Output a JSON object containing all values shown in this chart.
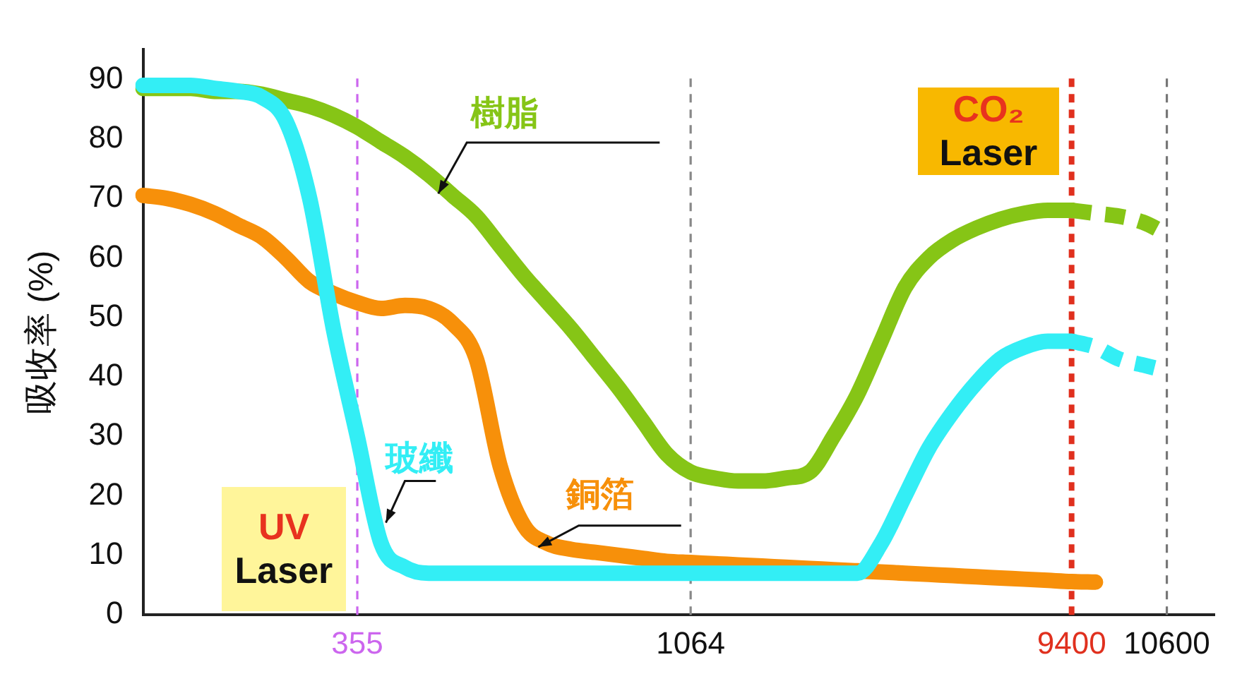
{
  "chart_data": {
    "type": "line",
    "ylabel": "吸收率 (%)",
    "categories": [
      null,
      null,
      null,
      null,
      null,
      null,
      null,
      null,
      null,
      "355",
      null,
      null,
      null,
      null,
      null,
      null,
      null,
      null,
      null,
      null,
      null,
      null,
      null,
      "1064",
      null,
      null,
      null,
      null,
      null,
      null,
      null,
      null,
      null,
      null,
      null,
      null,
      null,
      null,
      null,
      "9400",
      null,
      null,
      null,
      "10600",
      null,
      null
    ],
    "ylim": [
      0,
      95
    ],
    "yticks": [
      0,
      10,
      20,
      30,
      40,
      50,
      60,
      70,
      80,
      90
    ],
    "grid": false,
    "legend": false,
    "marker": "none",
    "series": [
      {
        "name": "玻纖",
        "color": "#33eef5",
        "line_style": "solid",
        "values": [
          89,
          89,
          89,
          88.5,
          88,
          87,
          83,
          70,
          48,
          30,
          12,
          8,
          7,
          7,
          7,
          7,
          7,
          7,
          7,
          7,
          7,
          7,
          7,
          7,
          7,
          7,
          7,
          7,
          7,
          7,
          7,
          12,
          20,
          28,
          34,
          39,
          43,
          45,
          46,
          46,
          null,
          null,
          null,
          null,
          null,
          null
        ]
      },
      {
        "name": "銅箔",
        "color": "#f7900a",
        "line_style": "solid",
        "values": [
          70.5,
          70,
          69,
          67.5,
          65.5,
          63.5,
          60,
          56,
          54,
          52.5,
          51.5,
          52,
          51.5,
          49,
          43,
          25,
          15,
          12,
          11,
          10.5,
          10,
          9.5,
          9,
          8.8,
          8.6,
          8.4,
          8.2,
          8,
          7.8,
          7.6,
          7.4,
          7.2,
          7,
          6.8,
          6.6,
          6.4,
          6.2,
          6,
          5.8,
          5.6,
          5.5,
          null,
          null,
          null,
          null,
          null
        ]
      },
      {
        "name": "樹脂",
        "color": "#86c516",
        "line_style": "solid",
        "values": [
          88.5,
          88.5,
          88.5,
          88,
          88,
          87.5,
          86.5,
          85.5,
          84,
          82,
          79.5,
          77,
          74,
          70.5,
          67,
          62,
          57,
          52.5,
          48,
          43,
          38,
          32.5,
          27,
          24,
          23,
          22.5,
          22.5,
          23,
          24,
          30,
          37,
          46,
          55,
          60,
          63,
          65,
          66.5,
          67.5,
          68,
          68,
          null,
          null,
          null,
          null,
          null,
          null
        ]
      },
      {
        "color": "#33eef5",
        "line_style": "dashed",
        "values": [
          null,
          null,
          null,
          null,
          null,
          null,
          null,
          null,
          null,
          null,
          null,
          null,
          null,
          null,
          null,
          null,
          null,
          null,
          null,
          null,
          null,
          null,
          null,
          null,
          null,
          null,
          null,
          null,
          null,
          null,
          null,
          null,
          null,
          null,
          null,
          null,
          null,
          null,
          null,
          46,
          45,
          43,
          42,
          41,
          null,
          null
        ]
      },
      {
        "color": "#86c516",
        "line_style": "dashed",
        "values": [
          null,
          null,
          null,
          null,
          null,
          null,
          null,
          null,
          null,
          null,
          null,
          null,
          null,
          null,
          null,
          null,
          null,
          null,
          null,
          null,
          null,
          null,
          null,
          null,
          null,
          null,
          null,
          null,
          null,
          null,
          null,
          null,
          null,
          null,
          null,
          null,
          null,
          null,
          null,
          68,
          67.5,
          67,
          66,
          64,
          null,
          null
        ]
      }
    ],
    "ref_lines": [
      {
        "axis": "x",
        "value": "355",
        "color": "#cc66ee",
        "line_style": "dashed"
      },
      {
        "axis": "x",
        "value": "1064",
        "color": "#888888",
        "line_style": "dashed"
      },
      {
        "axis": "x",
        "value": "9400",
        "color": "#e0301e",
        "line_style": "dashed"
      },
      {
        "axis": "x",
        "value": "10600",
        "color": "#777777",
        "line_style": "dashed"
      }
    ],
    "annotations": [
      "UV Laser",
      "CO₂ Laser"
    ]
  }
}
